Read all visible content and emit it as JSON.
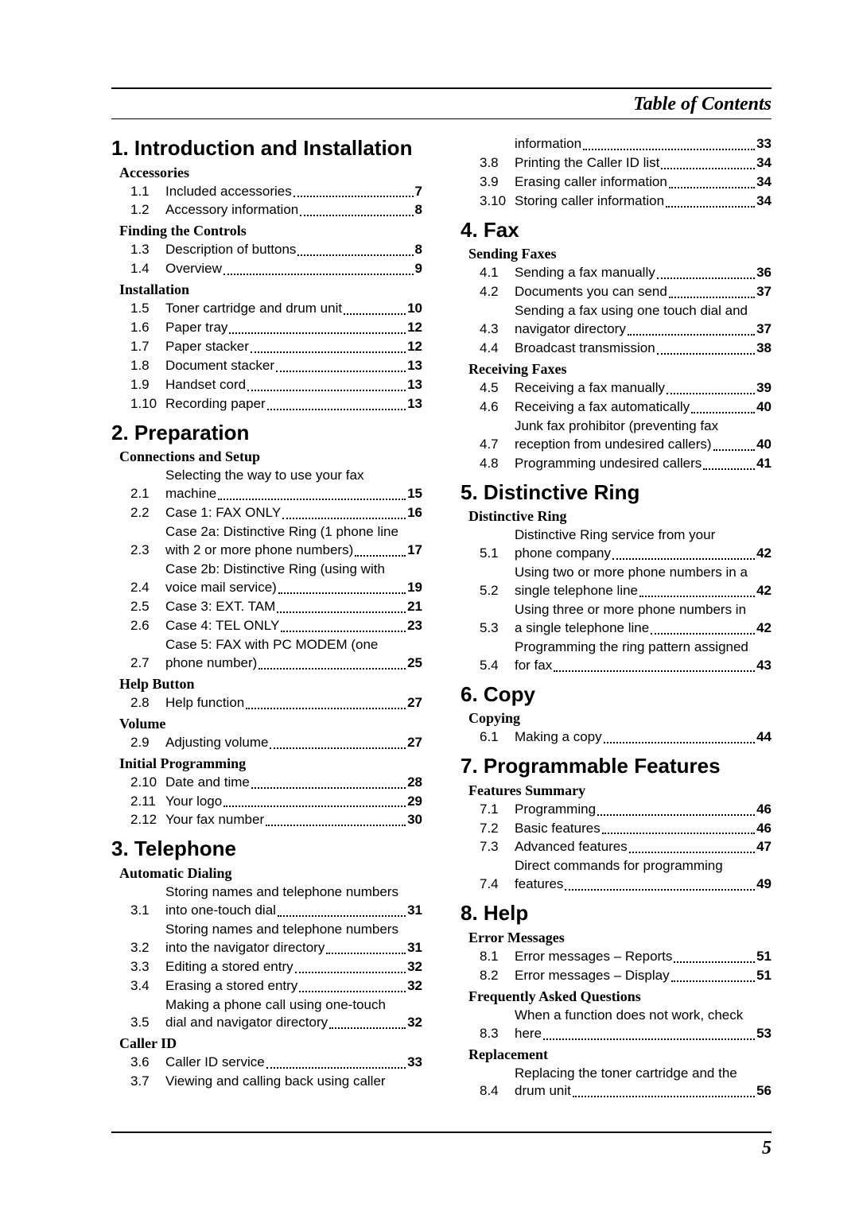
{
  "header": "Table of Contents",
  "page_number": "5",
  "left": [
    {
      "kind": "chapter",
      "text": "1.  Introduction and Installation",
      "first": true
    },
    {
      "kind": "section",
      "text": "Accessories"
    },
    {
      "kind": "entry",
      "num": "1.1",
      "lines": [
        "Included accessories"
      ],
      "page": "7"
    },
    {
      "kind": "entry",
      "num": "1.2",
      "lines": [
        "Accessory information"
      ],
      "page": "8"
    },
    {
      "kind": "section",
      "text": "Finding the Controls"
    },
    {
      "kind": "entry",
      "num": "1.3",
      "lines": [
        "Description of buttons"
      ],
      "page": "8"
    },
    {
      "kind": "entry",
      "num": "1.4",
      "lines": [
        "Overview"
      ],
      "page": "9"
    },
    {
      "kind": "section",
      "text": "Installation"
    },
    {
      "kind": "entry",
      "num": "1.5",
      "lines": [
        "Toner cartridge and drum unit"
      ],
      "page": "10"
    },
    {
      "kind": "entry",
      "num": "1.6",
      "lines": [
        "Paper tray"
      ],
      "page": "12"
    },
    {
      "kind": "entry",
      "num": "1.7",
      "lines": [
        "Paper stacker"
      ],
      "page": "12"
    },
    {
      "kind": "entry",
      "num": "1.8",
      "lines": [
        "Document stacker"
      ],
      "page": "13"
    },
    {
      "kind": "entry",
      "num": "1.9",
      "lines": [
        "Handset cord"
      ],
      "page": "13"
    },
    {
      "kind": "entry",
      "num": "1.10",
      "lines": [
        "Recording paper"
      ],
      "page": "13"
    },
    {
      "kind": "chapter",
      "text": "2.  Preparation"
    },
    {
      "kind": "section",
      "text": "Connections and Setup"
    },
    {
      "kind": "entry",
      "num": "2.1",
      "lines": [
        "Selecting the way to use your fax",
        "machine"
      ],
      "page": "15"
    },
    {
      "kind": "entry",
      "num": "2.2",
      "lines": [
        "Case 1: FAX ONLY"
      ],
      "page": "16"
    },
    {
      "kind": "entry",
      "num": "2.3",
      "lines": [
        "Case 2a: Distinctive Ring (1 phone line",
        "with 2 or more phone numbers)"
      ],
      "page": "17"
    },
    {
      "kind": "entry",
      "num": "2.4",
      "lines": [
        "Case 2b: Distinctive Ring (using with",
        "voice mail service)"
      ],
      "page": "19"
    },
    {
      "kind": "entry",
      "num": "2.5",
      "lines": [
        "Case 3: EXT. TAM"
      ],
      "page": "21"
    },
    {
      "kind": "entry",
      "num": "2.6",
      "lines": [
        "Case 4: TEL ONLY"
      ],
      "page": "23"
    },
    {
      "kind": "entry",
      "num": "2.7",
      "lines": [
        "Case 5: FAX with PC MODEM (one",
        "phone number)"
      ],
      "page": "25"
    },
    {
      "kind": "section",
      "text": "Help Button"
    },
    {
      "kind": "entry",
      "num": "2.8",
      "lines": [
        "Help function"
      ],
      "page": "27"
    },
    {
      "kind": "section",
      "text": "Volume"
    },
    {
      "kind": "entry",
      "num": "2.9",
      "lines": [
        "Adjusting volume"
      ],
      "page": "27"
    },
    {
      "kind": "section",
      "text": "Initial Programming"
    },
    {
      "kind": "entry",
      "num": "2.10",
      "lines": [
        "Date and time"
      ],
      "page": "28"
    },
    {
      "kind": "entry",
      "num": "2.11",
      "lines": [
        "Your logo"
      ],
      "page": "29"
    },
    {
      "kind": "entry",
      "num": "2.12",
      "lines": [
        "Your fax number"
      ],
      "page": "30"
    },
    {
      "kind": "chapter",
      "text": "3.  Telephone"
    },
    {
      "kind": "section",
      "text": "Automatic Dialing"
    },
    {
      "kind": "entry",
      "num": "3.1",
      "lines": [
        "Storing names and telephone numbers",
        "into one-touch dial"
      ],
      "page": "31"
    },
    {
      "kind": "entry",
      "num": "3.2",
      "lines": [
        "Storing names and telephone numbers",
        "into the navigator directory"
      ],
      "page": "31"
    },
    {
      "kind": "entry",
      "num": "3.3",
      "lines": [
        "Editing a stored entry"
      ],
      "page": "32"
    },
    {
      "kind": "entry",
      "num": "3.4",
      "lines": [
        "Erasing a stored entry"
      ],
      "page": "32"
    },
    {
      "kind": "entry",
      "num": "3.5",
      "lines": [
        "Making a phone call using one-touch",
        "dial and navigator directory"
      ],
      "page": "32"
    },
    {
      "kind": "section",
      "text": "Caller ID"
    },
    {
      "kind": "entry",
      "num": "3.6",
      "lines": [
        "Caller ID service"
      ],
      "page": "33"
    },
    {
      "kind": "entry-open",
      "num": "3.7",
      "lines": [
        "Viewing and calling back using caller"
      ]
    }
  ],
  "right": [
    {
      "kind": "entry-cont",
      "lines": [
        "information"
      ],
      "page": "33"
    },
    {
      "kind": "entry",
      "num": "3.8",
      "lines": [
        "Printing the Caller ID list"
      ],
      "page": "34"
    },
    {
      "kind": "entry",
      "num": "3.9",
      "lines": [
        "Erasing caller information"
      ],
      "page": "34"
    },
    {
      "kind": "entry",
      "num": "3.10",
      "lines": [
        "Storing caller information"
      ],
      "page": "34"
    },
    {
      "kind": "chapter",
      "text": "4.  Fax"
    },
    {
      "kind": "section",
      "text": "Sending Faxes"
    },
    {
      "kind": "entry",
      "num": "4.1",
      "lines": [
        "Sending a fax manually"
      ],
      "page": "36"
    },
    {
      "kind": "entry",
      "num": "4.2",
      "lines": [
        "Documents you can send"
      ],
      "page": "37"
    },
    {
      "kind": "entry",
      "num": "4.3",
      "lines": [
        "Sending a fax using one touch dial and",
        "navigator directory"
      ],
      "page": "37"
    },
    {
      "kind": "entry",
      "num": "4.4",
      "lines": [
        "Broadcast transmission"
      ],
      "page": "38"
    },
    {
      "kind": "section",
      "text": "Receiving Faxes"
    },
    {
      "kind": "entry",
      "num": "4.5",
      "lines": [
        "Receiving a fax manually"
      ],
      "page": "39"
    },
    {
      "kind": "entry",
      "num": "4.6",
      "lines": [
        "Receiving a fax automatically"
      ],
      "page": "40"
    },
    {
      "kind": "entry",
      "num": "4.7",
      "lines": [
        "Junk fax prohibitor (preventing fax",
        "reception from undesired callers)"
      ],
      "page": "40"
    },
    {
      "kind": "entry",
      "num": "4.8",
      "lines": [
        "Programming undesired callers"
      ],
      "page": "41"
    },
    {
      "kind": "chapter",
      "text": "5.  Distinctive Ring"
    },
    {
      "kind": "section",
      "text": "Distinctive Ring"
    },
    {
      "kind": "entry",
      "num": "5.1",
      "lines": [
        "Distinctive Ring service from your",
        "phone company"
      ],
      "page": "42"
    },
    {
      "kind": "entry",
      "num": "5.2",
      "lines": [
        "Using two or more phone numbers in a",
        "single telephone line"
      ],
      "page": "42"
    },
    {
      "kind": "entry",
      "num": "5.3",
      "lines": [
        "Using three or more phone numbers in",
        "a single telephone line"
      ],
      "page": "42"
    },
    {
      "kind": "entry",
      "num": "5.4",
      "lines": [
        "Programming the ring pattern assigned",
        "for fax"
      ],
      "page": "43"
    },
    {
      "kind": "chapter",
      "text": "6.  Copy"
    },
    {
      "kind": "section",
      "text": "Copying"
    },
    {
      "kind": "entry",
      "num": "6.1",
      "lines": [
        "Making a copy"
      ],
      "page": "44"
    },
    {
      "kind": "chapter",
      "text": "7.  Programmable Features"
    },
    {
      "kind": "section",
      "text": "Features Summary"
    },
    {
      "kind": "entry",
      "num": "7.1",
      "lines": [
        "Programming"
      ],
      "page": "46"
    },
    {
      "kind": "entry",
      "num": "7.2",
      "lines": [
        "Basic features"
      ],
      "page": "46"
    },
    {
      "kind": "entry",
      "num": "7.3",
      "lines": [
        "Advanced features"
      ],
      "page": "47"
    },
    {
      "kind": "entry",
      "num": "7.4",
      "lines": [
        "Direct commands for programming",
        "features"
      ],
      "page": "49"
    },
    {
      "kind": "chapter",
      "text": "8.  Help"
    },
    {
      "kind": "section",
      "text": "Error Messages"
    },
    {
      "kind": "entry",
      "num": "8.1",
      "lines": [
        "Error messages – Reports"
      ],
      "page": "51"
    },
    {
      "kind": "entry",
      "num": "8.2",
      "lines": [
        "Error messages – Display"
      ],
      "page": "51"
    },
    {
      "kind": "section",
      "text": "Frequently Asked Questions"
    },
    {
      "kind": "entry",
      "num": "8.3",
      "lines": [
        "When a function does not work, check",
        "here"
      ],
      "page": "53"
    },
    {
      "kind": "section",
      "text": "Replacement"
    },
    {
      "kind": "entry",
      "num": "8.4",
      "lines": [
        "Replacing the toner cartridge and the",
        "drum unit"
      ],
      "page": "56"
    }
  ]
}
